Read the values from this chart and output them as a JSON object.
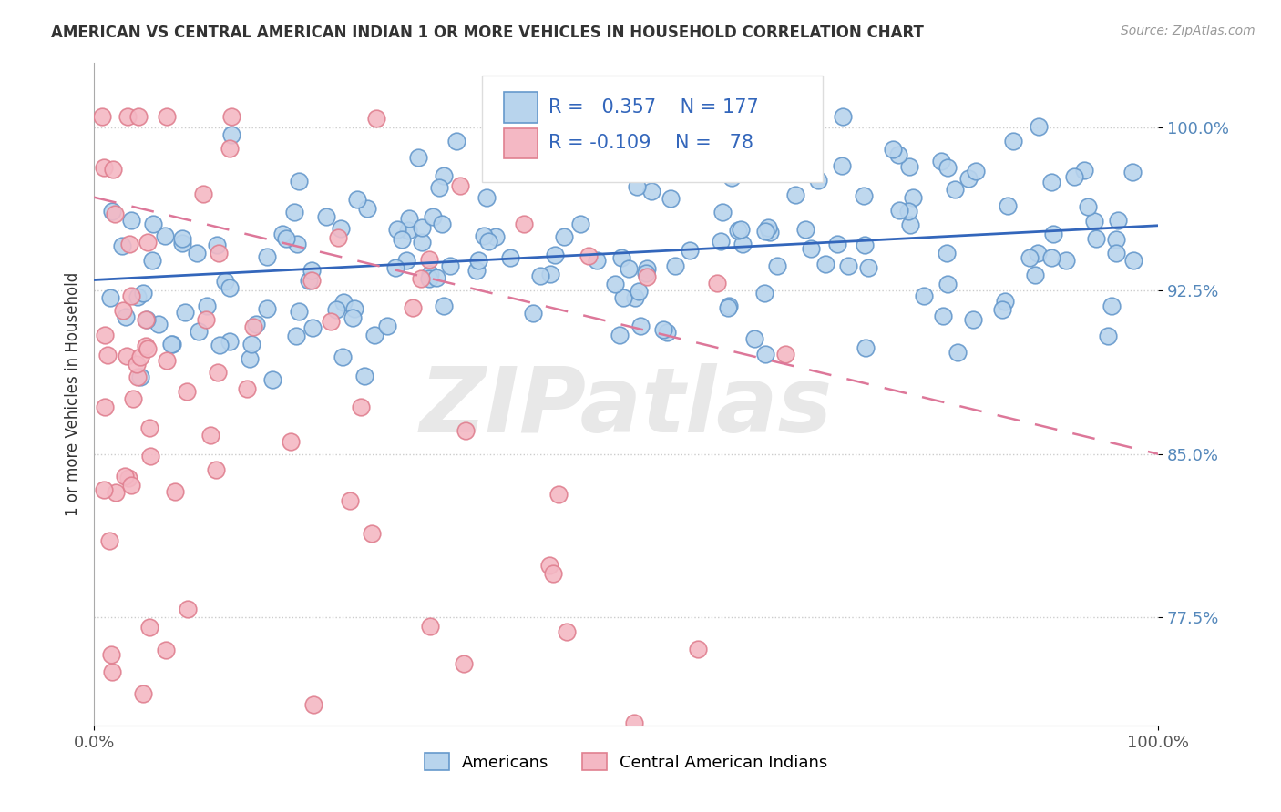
{
  "title": "AMERICAN VS CENTRAL AMERICAN INDIAN 1 OR MORE VEHICLES IN HOUSEHOLD CORRELATION CHART",
  "source": "Source: ZipAtlas.com",
  "ylabel": "1 or more Vehicles in Household",
  "xlim": [
    0.0,
    1.0
  ],
  "ylim": [
    0.725,
    1.03
  ],
  "yticks": [
    0.775,
    0.85,
    0.925,
    1.0
  ],
  "ytick_labels": [
    "77.5%",
    "85.0%",
    "92.5%",
    "100.0%"
  ],
  "xtick_labels": [
    "0.0%",
    "100.0%"
  ],
  "r_blue": 0.357,
  "n_blue": 177,
  "r_pink": -0.109,
  "n_pink": 78,
  "blue_color": "#b8d4ed",
  "pink_color": "#f4b8c4",
  "blue_edge": "#6699cc",
  "pink_edge": "#e08090",
  "trendline_blue": "#3366bb",
  "trendline_pink": "#dd7799",
  "legend_blue": "Americans",
  "legend_pink": "Central American Indians",
  "watermark_text": "ZIPatlas",
  "watermark_color": "#e8e8e8",
  "background_color": "#ffffff",
  "blue_trendline_start_y": 0.93,
  "blue_trendline_end_y": 0.955,
  "pink_trendline_start_y": 0.968,
  "pink_trendline_end_y": 0.85
}
